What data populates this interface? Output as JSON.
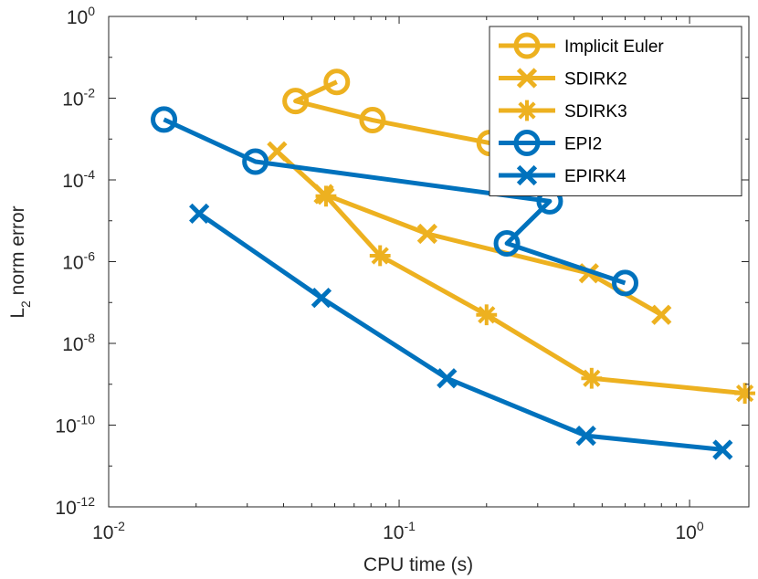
{
  "chart_data": {
    "type": "line",
    "xlabel": "CPU time (s)",
    "ylabel_base": "L",
    "ylabel_sub": "2",
    "ylabel_rest": " norm error",
    "x_scale": "log",
    "y_scale": "log",
    "xlim": [
      0.01,
      1.6
    ],
    "ylim": [
      1e-12,
      1
    ],
    "x_ticks": [
      {
        "value": 0.01,
        "base": "10",
        "exp": "-2"
      },
      {
        "value": 0.1,
        "base": "10",
        "exp": "-1"
      },
      {
        "value": 1,
        "base": "10",
        "exp": "0"
      }
    ],
    "y_ticks": [
      {
        "value": 1e-12,
        "base": "10",
        "exp": "-12"
      },
      {
        "value": 1e-10,
        "base": "10",
        "exp": "-10"
      },
      {
        "value": 1e-08,
        "base": "10",
        "exp": "-8"
      },
      {
        "value": 1e-06,
        "base": "10",
        "exp": "-6"
      },
      {
        "value": 0.0001,
        "base": "10",
        "exp": "-4"
      },
      {
        "value": 0.01,
        "base": "10",
        "exp": "-2"
      },
      {
        "value": 1,
        "base": "10",
        "exp": "0"
      }
    ],
    "grid": false,
    "legend_position": "top-right",
    "series": [
      {
        "name": "Implicit Euler",
        "color": "#EDB120",
        "marker": "circle",
        "points": [
          [
            0.061,
            0.025
          ],
          [
            0.044,
            0.0085
          ],
          [
            0.081,
            0.0029
          ],
          [
            0.205,
            0.0008
          ],
          [
            0.45,
            0.00035
          ]
        ]
      },
      {
        "name": "SDIRK2",
        "color": "#EDB120",
        "marker": "x",
        "points": [
          [
            0.038,
            0.0005
          ],
          [
            0.055,
            4.5e-05
          ],
          [
            0.125,
            4.8e-06
          ],
          [
            0.45,
            5.2e-07
          ],
          [
            0.8,
            5e-08
          ]
        ]
      },
      {
        "name": "SDIRK3",
        "color": "#EDB120",
        "marker": "asterisk",
        "points": [
          [
            0.056,
            4e-05
          ],
          [
            0.086,
            1.4e-06
          ],
          [
            0.2,
            5e-08
          ],
          [
            0.46,
            1.4e-09
          ],
          [
            1.55,
            6e-10
          ]
        ]
      },
      {
        "name": "EPI2",
        "color": "#0072BD",
        "marker": "circle",
        "points": [
          [
            0.0155,
            0.003
          ],
          [
            0.032,
            0.00028
          ],
          [
            0.33,
            3e-05
          ],
          [
            0.235,
            2.8e-06
          ],
          [
            0.6,
            3e-07
          ]
        ]
      },
      {
        "name": "EPIRK4",
        "color": "#0072BD",
        "marker": "x",
        "points": [
          [
            0.0205,
            1.5e-05
          ],
          [
            0.054,
            1.3e-07
          ],
          [
            0.146,
            1.4e-09
          ],
          [
            0.44,
            5.5e-11
          ],
          [
            1.3,
            2.5e-11
          ]
        ]
      }
    ]
  }
}
